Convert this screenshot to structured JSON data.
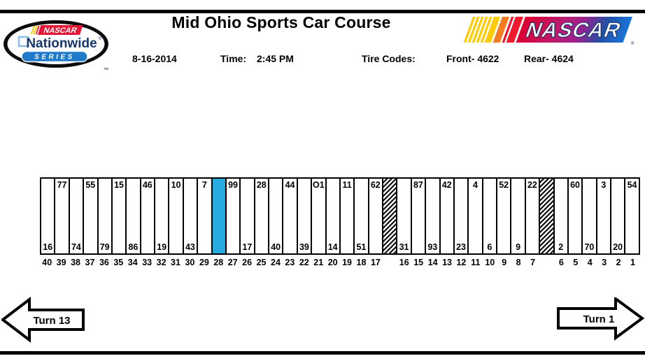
{
  "header": {
    "title": "Mid Ohio Sports Car Course",
    "date": "8-16-2014",
    "time_label": "Time:",
    "time_value": "2:45 PM",
    "tire_codes_label": "Tire Codes:",
    "tire_front": "Front- 4622",
    "tire_rear": "Rear- 4624"
  },
  "logos": {
    "nationwide": {
      "nascar_word": "NASCAR",
      "nationwide_word": "Nationwide",
      "registered": "®",
      "series_word": "SERIES",
      "trademark": "™",
      "navy": "#16376B",
      "banner_blue": "#1F7BC9"
    },
    "nascar_bar": {
      "word": "NASCAR",
      "registered": "®",
      "yellow": "#FFCB05",
      "orange": "#F47B20",
      "red": "#EF1A2D",
      "purple": "#9E1F8E",
      "blue": "#1B74D8"
    }
  },
  "pit_row": {
    "selected_color": "#29ABE2",
    "stalls": [
      {
        "stall": "40",
        "car": "16",
        "car_pos": "bottom",
        "type": "normal"
      },
      {
        "stall": "39",
        "car": "77",
        "car_pos": "top",
        "type": "normal"
      },
      {
        "stall": "38",
        "car": "74",
        "car_pos": "bottom",
        "type": "normal"
      },
      {
        "stall": "37",
        "car": "55",
        "car_pos": "top",
        "type": "normal"
      },
      {
        "stall": "36",
        "car": "79",
        "car_pos": "bottom",
        "type": "normal"
      },
      {
        "stall": "35",
        "car": "15",
        "car_pos": "top",
        "type": "normal"
      },
      {
        "stall": "34",
        "car": "86",
        "car_pos": "bottom",
        "type": "normal"
      },
      {
        "stall": "33",
        "car": "46",
        "car_pos": "top",
        "type": "normal"
      },
      {
        "stall": "32",
        "car": "19",
        "car_pos": "bottom",
        "type": "normal"
      },
      {
        "stall": "31",
        "car": "10",
        "car_pos": "top",
        "type": "normal"
      },
      {
        "stall": "30",
        "car": "43",
        "car_pos": "bottom",
        "type": "normal"
      },
      {
        "stall": "29",
        "car": "7",
        "car_pos": "top",
        "type": "normal"
      },
      {
        "stall": "28",
        "car": "",
        "car_pos": "",
        "type": "selected"
      },
      {
        "stall": "27",
        "car": "99",
        "car_pos": "top",
        "type": "normal"
      },
      {
        "stall": "26",
        "car": "17",
        "car_pos": "bottom",
        "type": "normal"
      },
      {
        "stall": "25",
        "car": "28",
        "car_pos": "top",
        "type": "normal"
      },
      {
        "stall": "24",
        "car": "40",
        "car_pos": "bottom",
        "type": "normal"
      },
      {
        "stall": "23",
        "car": "44",
        "car_pos": "top",
        "type": "normal"
      },
      {
        "stall": "22",
        "car": "39",
        "car_pos": "bottom",
        "type": "normal"
      },
      {
        "stall": "21",
        "car": "O1",
        "car_pos": "top",
        "type": "normal"
      },
      {
        "stall": "20",
        "car": "14",
        "car_pos": "bottom",
        "type": "normal"
      },
      {
        "stall": "19",
        "car": "11",
        "car_pos": "top",
        "type": "normal"
      },
      {
        "stall": "18",
        "car": "51",
        "car_pos": "bottom",
        "type": "normal"
      },
      {
        "stall": "17",
        "car": "62",
        "car_pos": "top",
        "type": "normal"
      },
      {
        "stall": "",
        "car": "",
        "car_pos": "",
        "type": "hatched"
      },
      {
        "stall": "16",
        "car": "31",
        "car_pos": "bottom",
        "type": "normal"
      },
      {
        "stall": "15",
        "car": "87",
        "car_pos": "top",
        "type": "normal"
      },
      {
        "stall": "14",
        "car": "93",
        "car_pos": "bottom",
        "type": "normal"
      },
      {
        "stall": "13",
        "car": "42",
        "car_pos": "top",
        "type": "normal"
      },
      {
        "stall": "12",
        "car": "23",
        "car_pos": "bottom",
        "type": "normal"
      },
      {
        "stall": "11",
        "car": "4",
        "car_pos": "top",
        "type": "normal"
      },
      {
        "stall": "10",
        "car": "6",
        "car_pos": "bottom",
        "type": "normal"
      },
      {
        "stall": "9",
        "car": "52",
        "car_pos": "top",
        "type": "normal"
      },
      {
        "stall": "8",
        "car": "9",
        "car_pos": "bottom",
        "type": "normal"
      },
      {
        "stall": "7",
        "car": "22",
        "car_pos": "top",
        "type": "normal"
      },
      {
        "stall": "",
        "car": "",
        "car_pos": "",
        "type": "hatched"
      },
      {
        "stall": "6",
        "car": "2",
        "car_pos": "bottom",
        "type": "normal"
      },
      {
        "stall": "5",
        "car": "60",
        "car_pos": "top",
        "type": "normal"
      },
      {
        "stall": "4",
        "car": "70",
        "car_pos": "bottom",
        "type": "normal"
      },
      {
        "stall": "3",
        "car": "3",
        "car_pos": "top",
        "type": "normal"
      },
      {
        "stall": "2",
        "car": "20",
        "car_pos": "bottom",
        "type": "normal"
      },
      {
        "stall": "1",
        "car": "54",
        "car_pos": "top",
        "type": "normal"
      }
    ]
  },
  "arrows": {
    "left_label": "Turn 13",
    "right_label": "Turn 1"
  }
}
